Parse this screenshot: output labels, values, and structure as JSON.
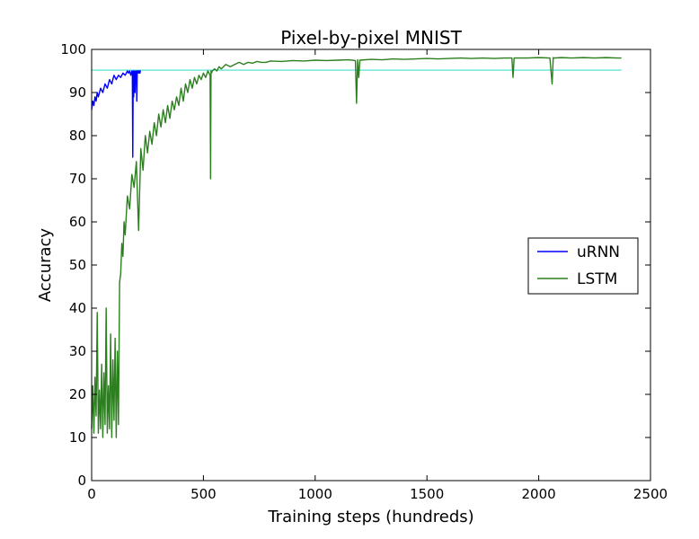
{
  "chart_data": {
    "type": "line",
    "title": "Pixel-by-pixel MNIST",
    "xlabel": "Training steps (hundreds)",
    "ylabel": "Accuracy",
    "xlim": [
      0,
      2500
    ],
    "ylim": [
      0,
      100
    ],
    "xticks": [
      0,
      500,
      1000,
      1500,
      2000,
      2500
    ],
    "yticks": [
      0,
      10,
      20,
      30,
      40,
      50,
      60,
      70,
      80,
      90,
      100
    ],
    "grid": false,
    "legend_position": "center-right",
    "series": [
      {
        "name": "uRNN",
        "color": "#0000ff",
        "x": [
          0,
          5,
          10,
          15,
          20,
          25,
          30,
          40,
          50,
          60,
          70,
          80,
          90,
          100,
          110,
          120,
          130,
          140,
          150,
          160,
          165,
          170,
          175,
          180,
          182,
          184,
          186,
          188,
          190,
          192,
          194,
          196,
          198,
          200,
          202,
          204,
          206,
          208,
          210,
          212,
          214,
          216,
          218,
          220
        ],
        "y": [
          86,
          88,
          87,
          89,
          88,
          90,
          89,
          91,
          90,
          92,
          91,
          93,
          92,
          94,
          93,
          94,
          93.5,
          94.5,
          94,
          95,
          94.5,
          95,
          94,
          95,
          94.5,
          75,
          95,
          89,
          94.5,
          95,
          90,
          94.5,
          95,
          94.5,
          88,
          95,
          94.5,
          95,
          95,
          94.5,
          95,
          94.5,
          95,
          95
        ]
      },
      {
        "name": "LSTM",
        "color": "#2c7f1e",
        "x": [
          0,
          5,
          10,
          15,
          20,
          25,
          30,
          35,
          40,
          45,
          50,
          55,
          60,
          65,
          70,
          75,
          80,
          85,
          90,
          95,
          100,
          105,
          110,
          115,
          120,
          125,
          130,
          135,
          140,
          145,
          150,
          160,
          170,
          180,
          190,
          200,
          210,
          220,
          230,
          240,
          250,
          260,
          270,
          280,
          290,
          300,
          310,
          320,
          330,
          340,
          350,
          360,
          370,
          380,
          390,
          400,
          410,
          420,
          430,
          440,
          450,
          460,
          470,
          480,
          490,
          500,
          510,
          520,
          530,
          532,
          534,
          536,
          540,
          550,
          560,
          570,
          580,
          590,
          600,
          620,
          640,
          660,
          680,
          700,
          720,
          740,
          760,
          780,
          800,
          850,
          900,
          950,
          1000,
          1050,
          1100,
          1150,
          1180,
          1185,
          1190,
          1195,
          1200,
          1250,
          1300,
          1350,
          1400,
          1450,
          1500,
          1550,
          1600,
          1650,
          1700,
          1750,
          1800,
          1850,
          1880,
          1885,
          1890,
          1900,
          1950,
          2000,
          2050,
          2060,
          2065,
          2070,
          2100,
          2150,
          2200,
          2250,
          2300,
          2350,
          2370
        ],
        "y": [
          12,
          22,
          11,
          24,
          15,
          39,
          11,
          21,
          12,
          27,
          10,
          25,
          13,
          40,
          11,
          22,
          12,
          34,
          10,
          28,
          14,
          33,
          10,
          30,
          13,
          46,
          48,
          55,
          52,
          60,
          57,
          66,
          63,
          71,
          68,
          74,
          58,
          77,
          72,
          80,
          76,
          81,
          78,
          83,
          80,
          85,
          82,
          86,
          83,
          87,
          84,
          88,
          86,
          89,
          87,
          91,
          88,
          92,
          90,
          93,
          91,
          93.5,
          92,
          94,
          93,
          94.5,
          93.5,
          95,
          94,
          70,
          95,
          94.5,
          95,
          95.5,
          95,
          96,
          95.5,
          96,
          96.5,
          96,
          96.5,
          97,
          96.5,
          97,
          96.8,
          97.2,
          97,
          97,
          97.3,
          97.2,
          97.4,
          97.3,
          97.5,
          97.4,
          97.5,
          97.6,
          97.4,
          87.5,
          97.6,
          93.5,
          97.5,
          97.7,
          97.6,
          97.8,
          97.7,
          97.8,
          97.9,
          97.8,
          97.9,
          98,
          97.9,
          98,
          97.9,
          98,
          98,
          93.5,
          98,
          98,
          98,
          98.1,
          98,
          92,
          98.1,
          98,
          98.1,
          98,
          98.1,
          98,
          98.1,
          98,
          98
        ]
      },
      {
        "name": "",
        "color": "#40e0d0",
        "x": [
          0,
          2370
        ],
        "y": [
          95.2,
          95.2
        ]
      }
    ],
    "legend": [
      "uRNN",
      "LSTM"
    ]
  }
}
